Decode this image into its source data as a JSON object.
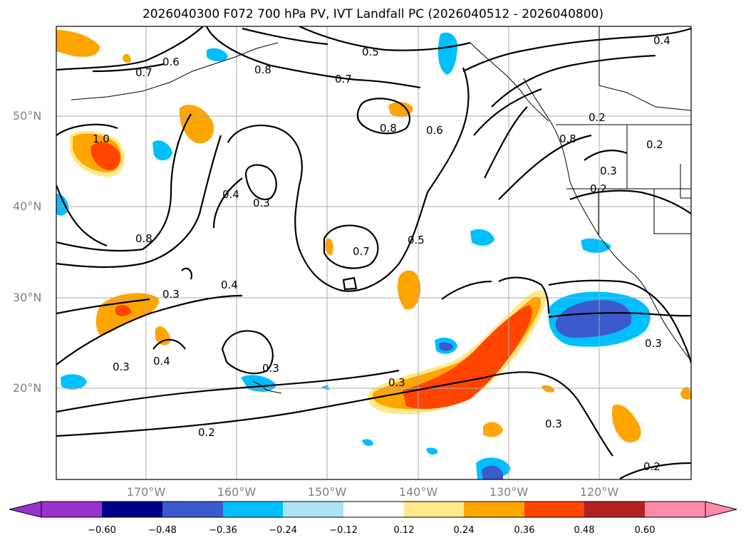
{
  "title": "2026040300 F072 700 hPa PV, IVT Landfall PC (2026040512 - 2026040800)",
  "lat_labels": [
    "50°N",
    "40°N",
    "30°N",
    "20°N"
  ],
  "lon_labels": [
    "170°W",
    "160°W",
    "150°W",
    "140°W",
    "130°W",
    "120°W"
  ],
  "colorbar": {
    "ticks": [
      "−0.60",
      "−0.48",
      "−0.36",
      "−0.24",
      "−0.12",
      "0.12",
      "0.24",
      "0.36",
      "0.48",
      "0.60"
    ],
    "colors": [
      "#9932cc",
      "#00008b",
      "#3b5bcc",
      "#00bfff",
      "#ade2f7",
      "#ffffff",
      "#ffe98a",
      "#ffa500",
      "#ff4500",
      "#b22222",
      "#ff89aa"
    ]
  },
  "contour_labels": [
    "0.6",
    "0.7",
    "0.8",
    "0.5",
    "0.7",
    "0.4",
    "0.8",
    "0.6",
    "0.2",
    "0.8",
    "0.2",
    "0.3",
    "0.2",
    "1.0",
    "0.4",
    "0.3",
    "0.8",
    "0.7",
    "0.5",
    "0.3",
    "0.4",
    "0.3",
    "0.4",
    "0.3",
    "0.3",
    "0.3",
    "0.2",
    "0.3",
    "0.2"
  ]
}
